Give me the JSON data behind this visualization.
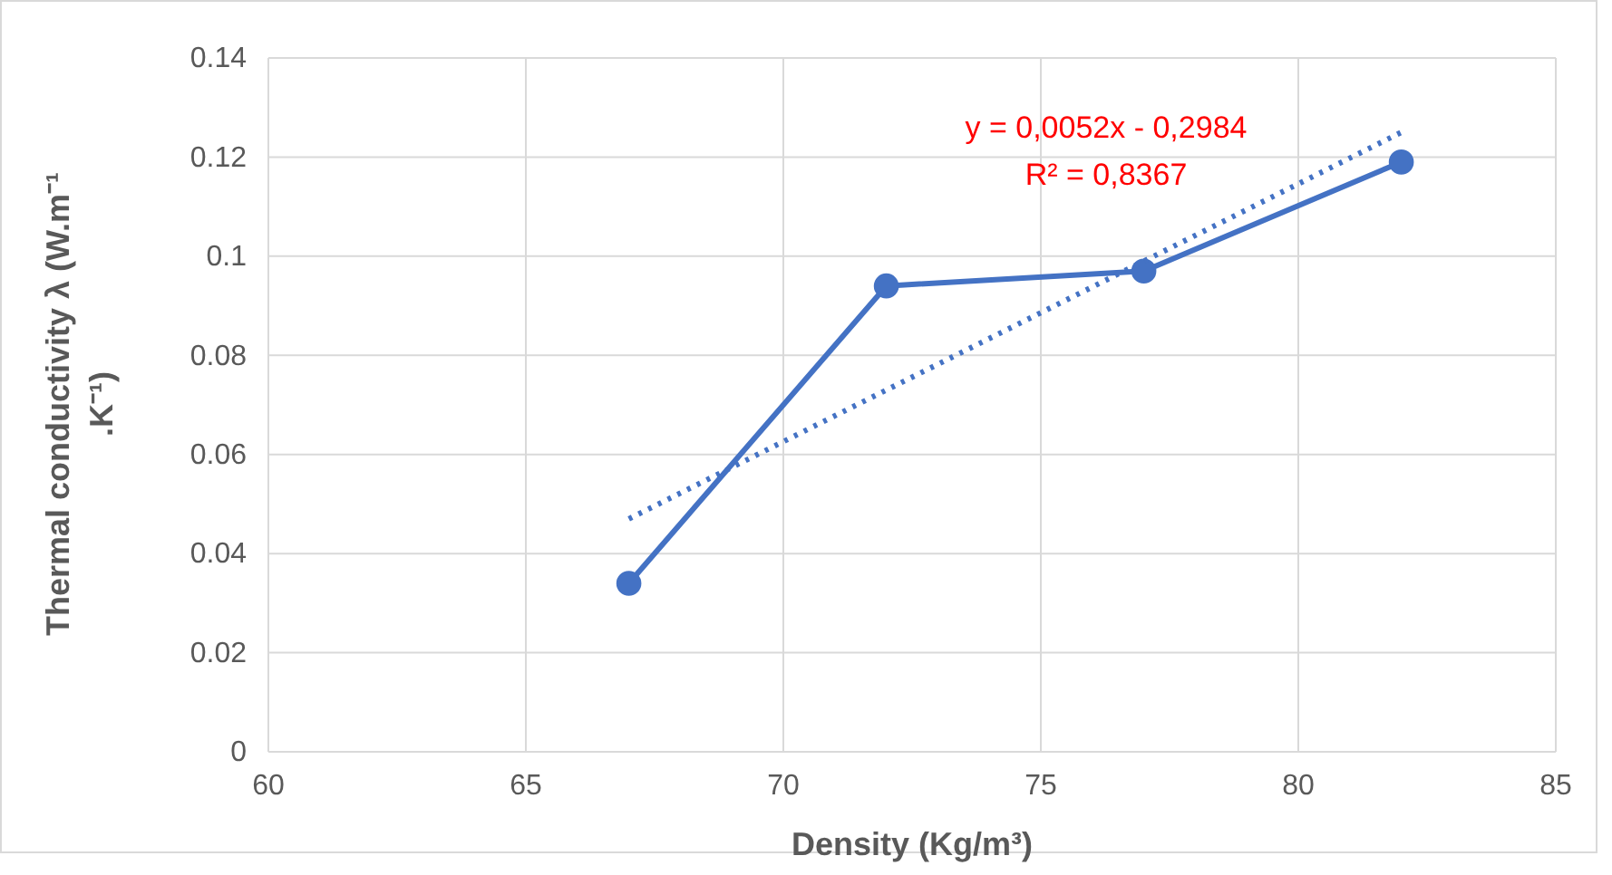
{
  "chart_data": {
    "type": "line",
    "xlabel": "Density (Kg/m³)",
    "ylabel": "Thermal conductivity λ (W.m⁻¹ .K⁻¹)",
    "xlim": [
      60,
      85
    ],
    "xticks": [
      60,
      65,
      70,
      75,
      80,
      85
    ],
    "ylim": [
      0,
      0.14
    ],
    "yticks": [
      0,
      0.02,
      0.04,
      0.06,
      0.08,
      0.1,
      0.12,
      0.14
    ],
    "grid": true,
    "series": [
      {
        "color": "#4472c4",
        "x": [
          67,
          72,
          77,
          82
        ],
        "values": [
          0.034,
          0.094,
          0.097,
          0.119
        ],
        "marker": "circle",
        "line_style": "solid"
      },
      {
        "color": "#4472c4",
        "x": [
          67,
          82
        ],
        "values": [
          0.047,
          0.125
        ],
        "marker": "none",
        "line_style": "dotted"
      }
    ],
    "annotations": [
      "y = 0,0052x - 0,2984",
      "R² = 0,8367"
    ]
  }
}
